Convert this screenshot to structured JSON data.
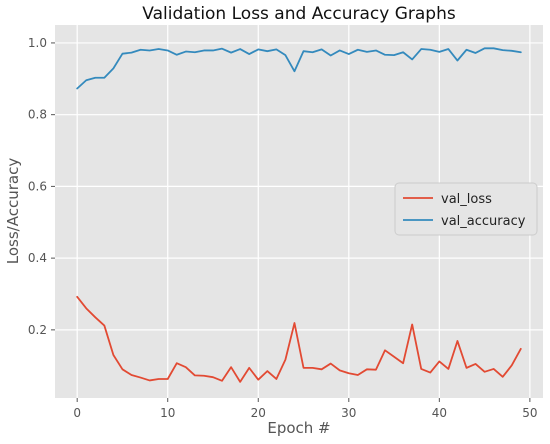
{
  "chart_data": {
    "type": "line",
    "title": "Validation Loss and Accuracy Graphs",
    "xlabel": "Epoch #",
    "ylabel": "Loss/Accuracy",
    "xlim": [
      -2.45,
      51.45
    ],
    "ylim": [
      0.01,
      1.05
    ],
    "grid": true,
    "legend_position": "center-right",
    "x_ticks": [
      0,
      10,
      20,
      30,
      40,
      50
    ],
    "y_ticks": [
      0.2,
      0.4,
      0.6,
      0.8,
      1.0
    ],
    "x_tick_labels": [
      "0",
      "10",
      "20",
      "30",
      "40",
      "50"
    ],
    "y_tick_labels": [
      "0.2",
      "0.4",
      "0.6",
      "0.8",
      "1.0"
    ],
    "x": [
      0,
      1,
      2,
      3,
      4,
      5,
      6,
      7,
      8,
      9,
      10,
      11,
      12,
      13,
      14,
      15,
      16,
      17,
      18,
      19,
      20,
      21,
      22,
      23,
      24,
      25,
      26,
      27,
      28,
      29,
      30,
      31,
      32,
      33,
      34,
      35,
      36,
      37,
      38,
      39,
      40,
      41,
      42,
      43,
      44,
      45,
      46,
      47,
      48,
      49
    ],
    "series": [
      {
        "name": "val_loss",
        "color": "#E24A33",
        "values": [
          0.292,
          0.26,
          0.235,
          0.212,
          0.13,
          0.09,
          0.074,
          0.067,
          0.059,
          0.063,
          0.063,
          0.107,
          0.096,
          0.073,
          0.072,
          0.068,
          0.058,
          0.096,
          0.055,
          0.094,
          0.061,
          0.085,
          0.063,
          0.117,
          0.219,
          0.094,
          0.094,
          0.09,
          0.106,
          0.087,
          0.079,
          0.074,
          0.09,
          0.089,
          0.143,
          0.125,
          0.107,
          0.215,
          0.091,
          0.081,
          0.112,
          0.091,
          0.169,
          0.094,
          0.105,
          0.083,
          0.091,
          0.069,
          0.101,
          0.147
        ]
      },
      {
        "name": "val_accuracy",
        "color": "#348ABD",
        "values": [
          0.873,
          0.896,
          0.903,
          0.903,
          0.929,
          0.97,
          0.973,
          0.981,
          0.979,
          0.983,
          0.979,
          0.967,
          0.976,
          0.974,
          0.979,
          0.979,
          0.984,
          0.973,
          0.983,
          0.969,
          0.982,
          0.977,
          0.982,
          0.966,
          0.921,
          0.977,
          0.974,
          0.982,
          0.965,
          0.979,
          0.969,
          0.981,
          0.975,
          0.979,
          0.967,
          0.966,
          0.974,
          0.954,
          0.983,
          0.981,
          0.975,
          0.983,
          0.951,
          0.981,
          0.972,
          0.985,
          0.985,
          0.98,
          0.978,
          0.974
        ]
      }
    ]
  }
}
